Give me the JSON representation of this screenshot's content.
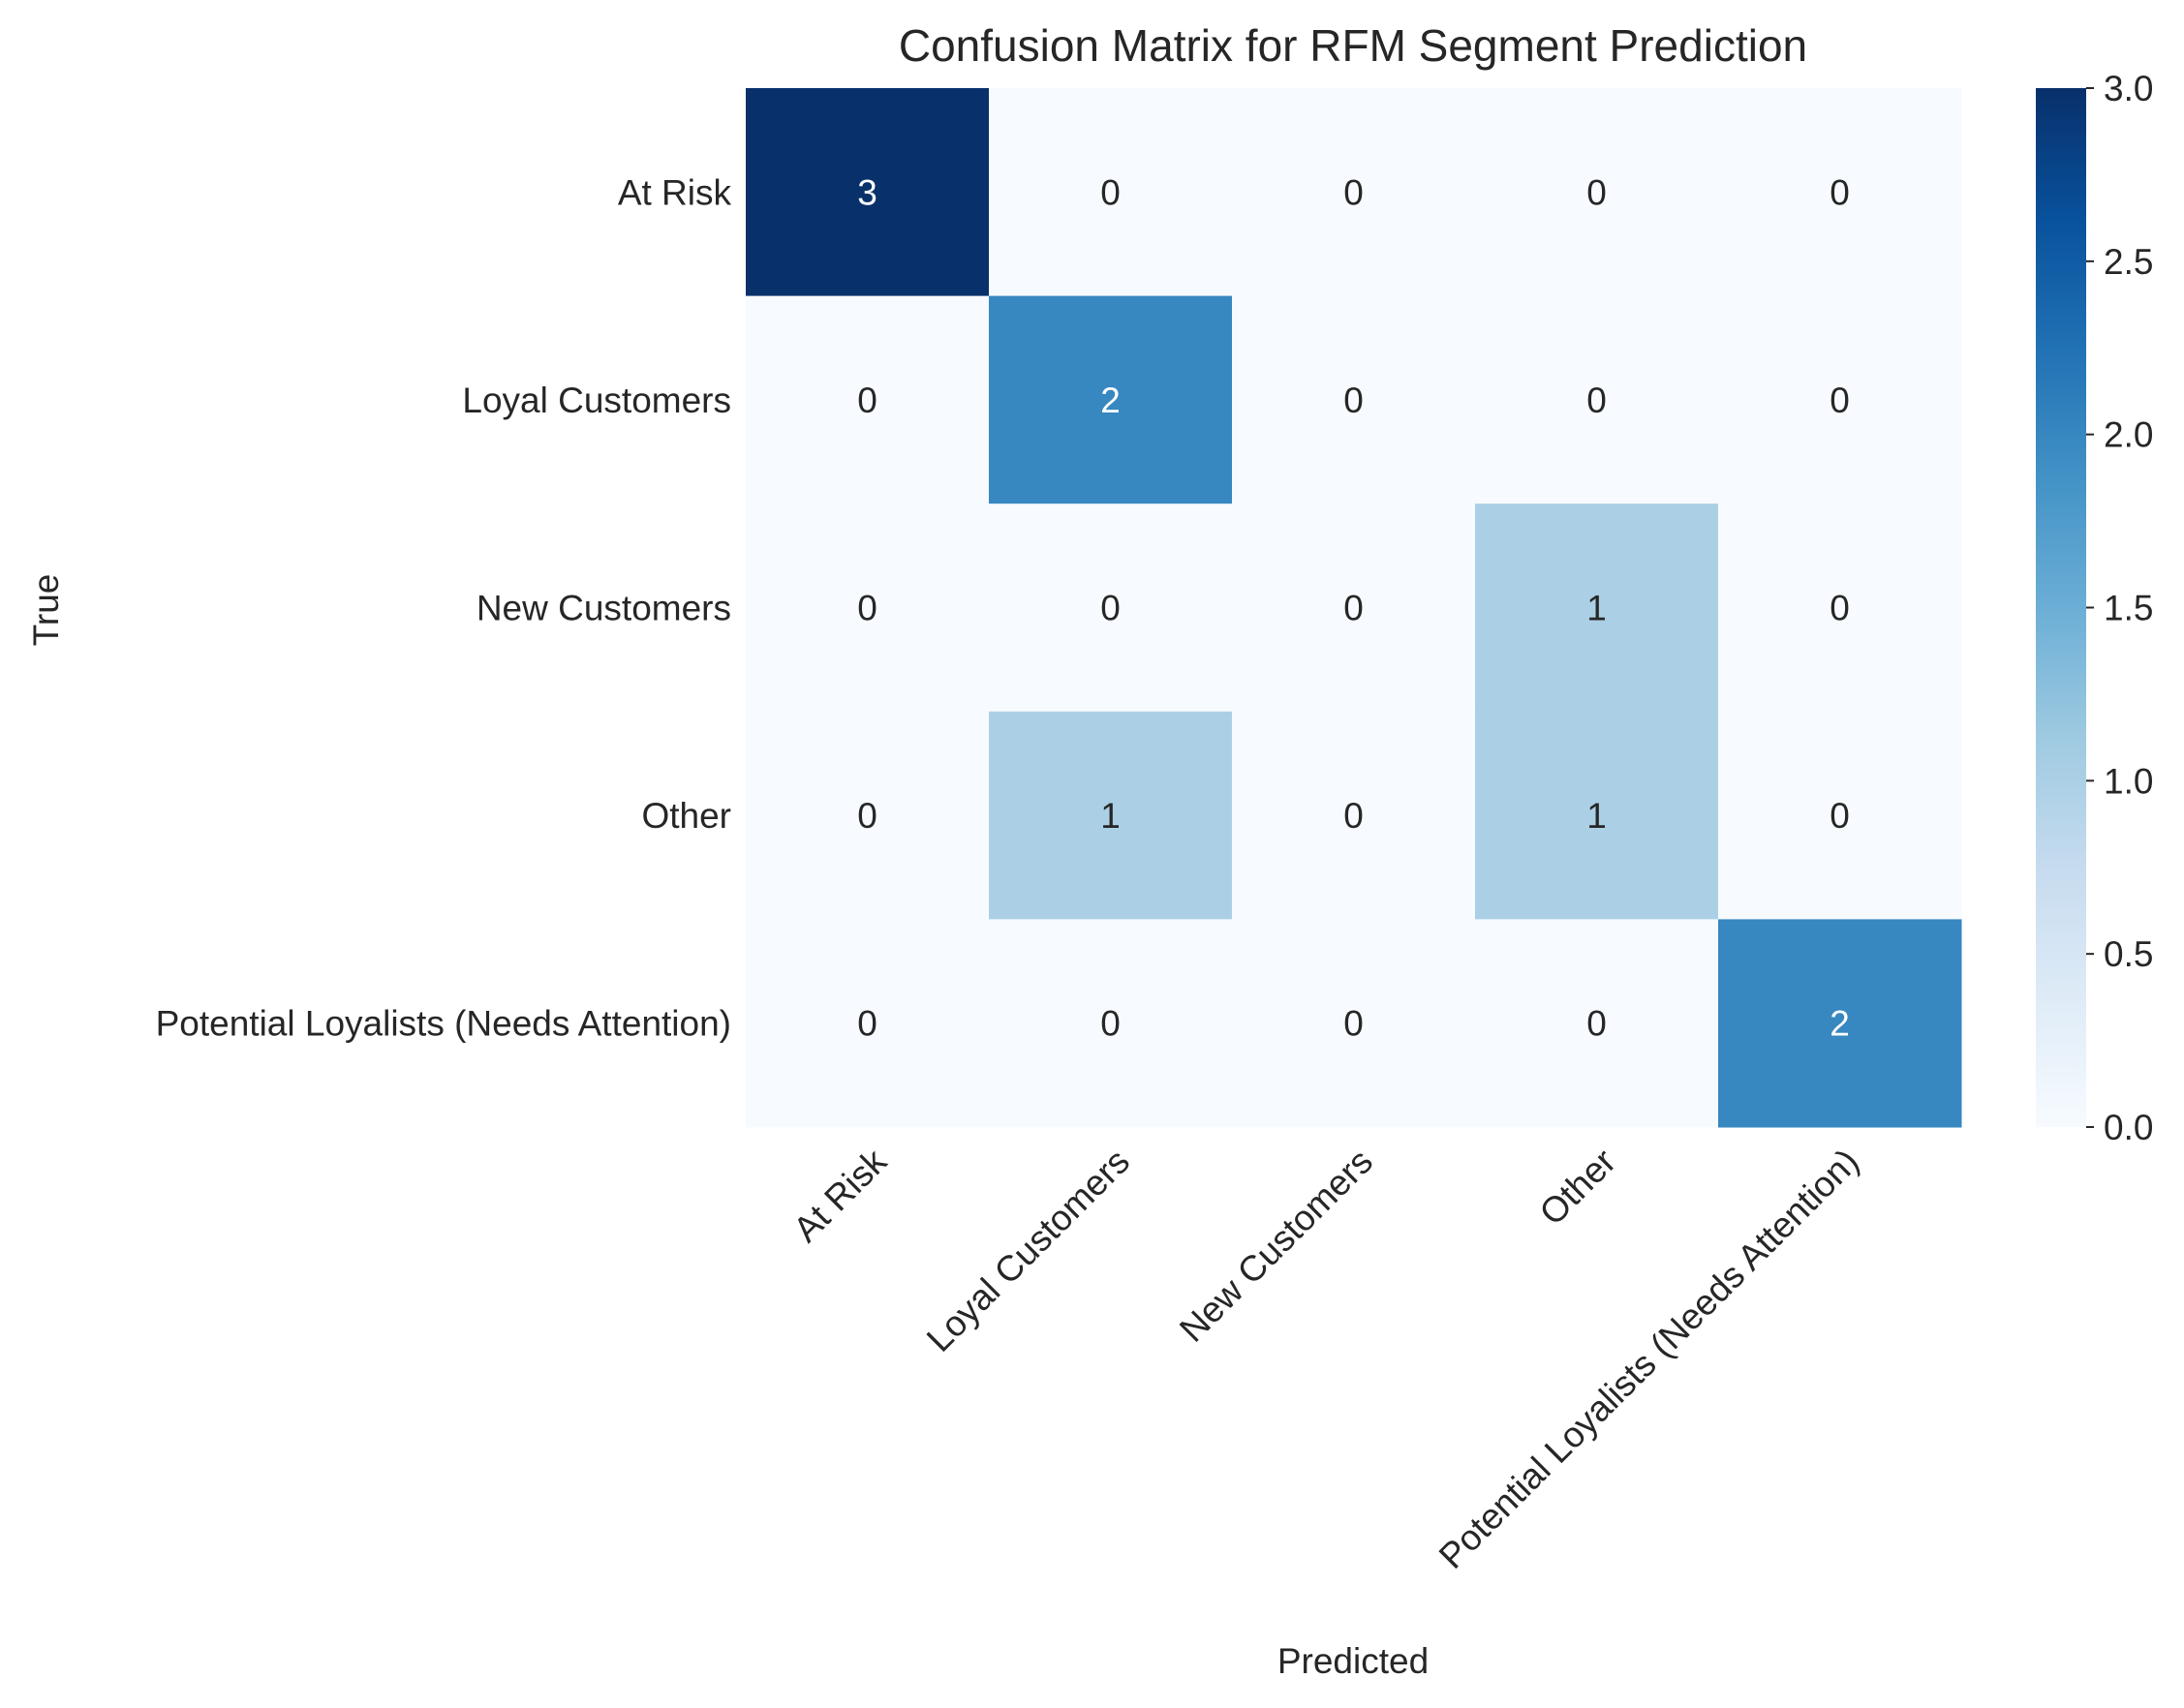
{
  "chart_data": {
    "type": "heatmap",
    "title": "Confusion Matrix for RFM Segment Prediction",
    "xlabel": "Predicted",
    "ylabel": "True",
    "x_categories": [
      "At Risk",
      "Loyal Customers",
      "New Customers",
      "Other",
      "Potential Loyalists (Needs Attention)"
    ],
    "y_categories": [
      "At Risk",
      "Loyal Customers",
      "New Customers",
      "Other",
      "Potential Loyalists (Needs Attention)"
    ],
    "values": [
      [
        3,
        0,
        0,
        0,
        0
      ],
      [
        0,
        2,
        0,
        0,
        0
      ],
      [
        0,
        0,
        0,
        1,
        0
      ],
      [
        0,
        1,
        0,
        1,
        0
      ],
      [
        0,
        0,
        0,
        0,
        2
      ]
    ],
    "colormap": "Blues",
    "vmin": 0,
    "vmax": 3,
    "colorbar_ticks": [
      "0.0",
      "0.5",
      "1.0",
      "1.5",
      "2.0",
      "2.5",
      "3.0"
    ],
    "annotations": true,
    "grid": false
  }
}
